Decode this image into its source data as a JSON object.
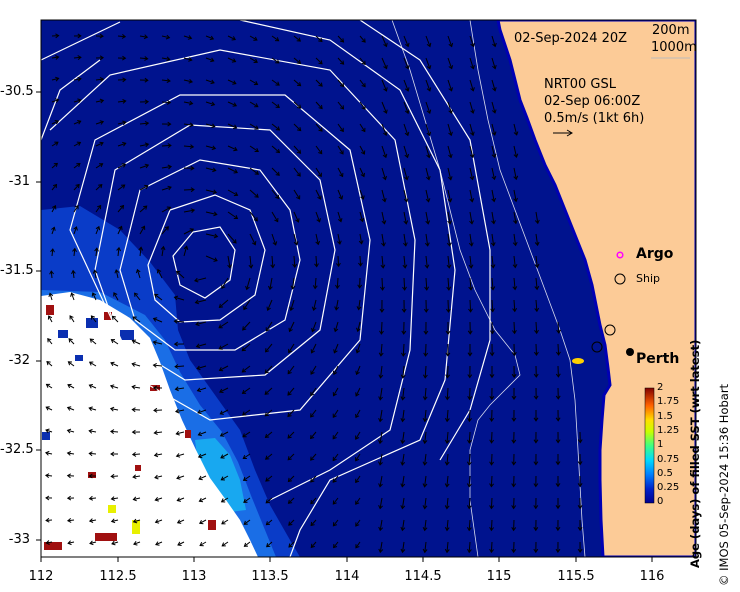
{
  "map": {
    "date": "02-Sep-2024 20Z",
    "contours": [
      "200m",
      "1000m"
    ],
    "current_title": "NRT00 GSL",
    "current_time": "02-Sep 06:00Z",
    "current_scale": "0.5m/s (1kt 6h)",
    "legend": {
      "argo": "Argo",
      "ship": "Ship"
    },
    "place": "Perth",
    "colors": {
      "ocean": "#00138e",
      "land": "#fccb97",
      "land_edge": "#0000b4",
      "contour": "#ffffff",
      "argo": "#ff00ff"
    }
  },
  "axes": {
    "x_ticks": [
      "112",
      "112.5",
      "113",
      "113.5",
      "114",
      "114.5",
      "115",
      "115.5",
      "116"
    ],
    "y_ticks": [
      "-30.5",
      "-31",
      "-31.5",
      "-32",
      "-32.5",
      "-33"
    ]
  },
  "colorbar": {
    "title": "Age (days) of filled SST (wrt latest)",
    "ticks": [
      "2",
      "1.75",
      "1.5",
      "1.25",
      "1",
      "0.75",
      "0.5",
      "0.25",
      "0"
    ],
    "range": [
      0,
      2
    ]
  },
  "credit": "© IMOS 05-Sep-2024 15:36 Hobart"
}
